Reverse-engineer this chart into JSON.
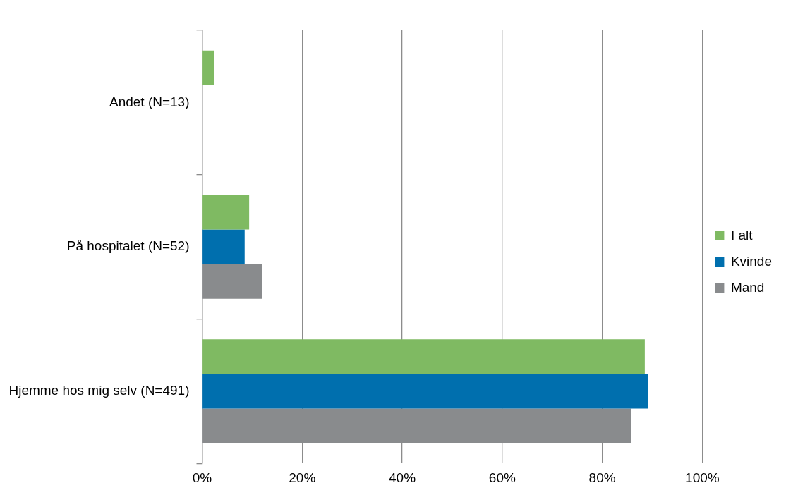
{
  "chart_data": {
    "type": "bar",
    "orientation": "horizontal",
    "categories": [
      "Andet (N=13)",
      "På hospitalet (N=52)",
      "Hjemme hos mig selv (N=491)"
    ],
    "series": [
      {
        "name": "I alt",
        "color": "#7fba62",
        "values": [
          2.4,
          9.4,
          88.5
        ]
      },
      {
        "name": "Kvinde",
        "color": "#006fae",
        "values": [
          0,
          8.5,
          89.2
        ]
      },
      {
        "name": "Mand",
        "color": "#898b8d",
        "values": [
          0,
          12.0,
          85.8
        ]
      }
    ],
    "xlim": [
      0,
      100
    ],
    "xticks": [
      {
        "value": 0,
        "label": "0%"
      },
      {
        "value": 20,
        "label": "20%"
      },
      {
        "value": 40,
        "label": "40%"
      },
      {
        "value": 60,
        "label": "60%"
      },
      {
        "value": 80,
        "label": "80%"
      },
      {
        "value": 100,
        "label": "100%"
      }
    ],
    "grid": "x",
    "legend": "right"
  }
}
